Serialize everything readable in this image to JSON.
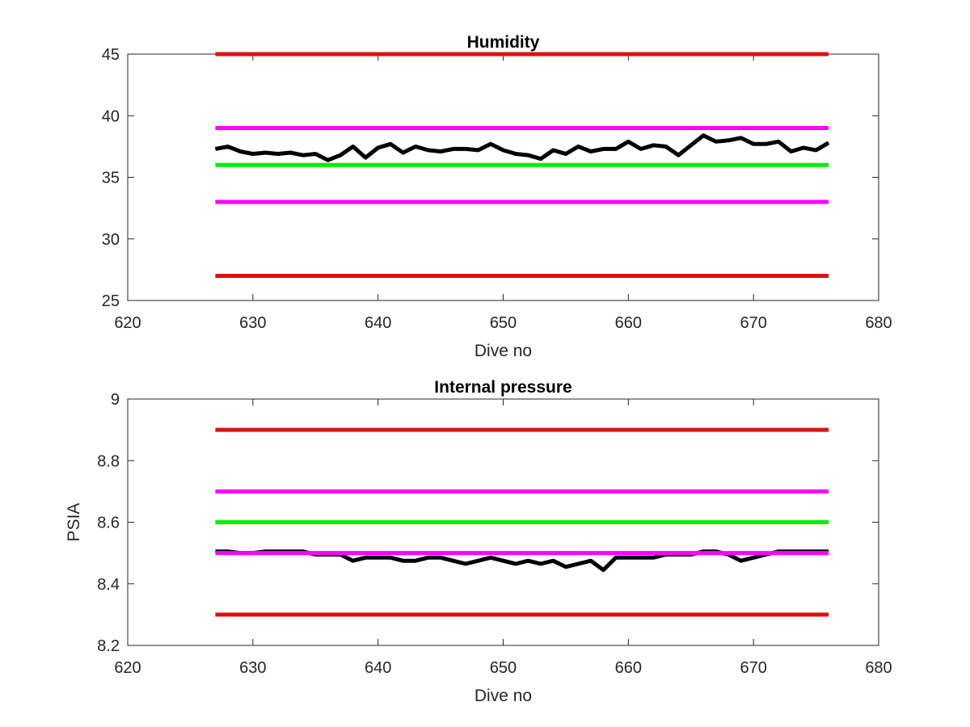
{
  "colors": {
    "background": "#ffffff",
    "axes": "#262626",
    "red_limit": "#e01010",
    "magenta_limit": "#ff00ff",
    "green_nominal": "#00ee00",
    "data_line": "#000000"
  },
  "chart_data": [
    {
      "type": "line",
      "title": "Humidity",
      "xlabel": "Dive no",
      "ylabel": "",
      "xlim": [
        620,
        680
      ],
      "ylim": [
        25,
        45
      ],
      "xticks": [
        620,
        630,
        640,
        650,
        660,
        670,
        680
      ],
      "yticks": [
        25,
        30,
        35,
        40,
        45
      ],
      "xtick_labels": [
        "620",
        "630",
        "640",
        "650",
        "660",
        "670",
        "680"
      ],
      "ytick_labels": [
        "25",
        "30",
        "35",
        "40",
        "45"
      ],
      "grid": false,
      "series": [
        {
          "role": "red_limit",
          "color": "#e01010",
          "x": [
            627,
            676
          ],
          "y": [
            45,
            45
          ]
        },
        {
          "role": "red_limit",
          "color": "#e01010",
          "x": [
            627,
            676
          ],
          "y": [
            27,
            27
          ]
        },
        {
          "role": "magenta_limit",
          "color": "#ff00ff",
          "x": [
            627,
            676
          ],
          "y": [
            39,
            39
          ]
        },
        {
          "role": "magenta_limit",
          "color": "#ff00ff",
          "x": [
            627,
            676
          ],
          "y": [
            33,
            33
          ]
        },
        {
          "role": "green_nominal",
          "color": "#00ee00",
          "x": [
            627,
            676
          ],
          "y": [
            36,
            36
          ]
        },
        {
          "role": "data",
          "color": "#000000",
          "x": [
            627,
            628,
            629,
            630,
            631,
            632,
            633,
            634,
            635,
            636,
            637,
            638,
            639,
            640,
            641,
            642,
            643,
            644,
            645,
            646,
            647,
            648,
            649,
            650,
            651,
            652,
            653,
            654,
            655,
            656,
            657,
            658,
            659,
            660,
            661,
            662,
            663,
            664,
            665,
            666,
            667,
            668,
            669,
            670,
            671,
            672,
            673,
            674,
            675,
            676
          ],
          "y": [
            37.3,
            37.5,
            37.1,
            36.9,
            37.0,
            36.9,
            37.0,
            36.8,
            36.9,
            36.4,
            36.8,
            37.5,
            36.6,
            37.4,
            37.7,
            37.0,
            37.5,
            37.2,
            37.1,
            37.3,
            37.3,
            37.2,
            37.7,
            37.2,
            36.9,
            36.8,
            36.5,
            37.2,
            36.9,
            37.5,
            37.1,
            37.3,
            37.3,
            37.9,
            37.3,
            37.6,
            37.5,
            36.8,
            37.6,
            38.4,
            37.9,
            38.0,
            38.2,
            37.7,
            37.7,
            37.9,
            37.1,
            37.4,
            37.2,
            37.8
          ]
        }
      ]
    },
    {
      "type": "line",
      "title": "Internal pressure",
      "xlabel": "Dive no",
      "ylabel": "PSIA",
      "xlim": [
        620,
        680
      ],
      "ylim": [
        8.2,
        9.0
      ],
      "xticks": [
        620,
        630,
        640,
        650,
        660,
        670,
        680
      ],
      "yticks": [
        8.2,
        8.4,
        8.6,
        8.8,
        9.0
      ],
      "xtick_labels": [
        "620",
        "630",
        "640",
        "650",
        "660",
        "670",
        "680"
      ],
      "ytick_labels": [
        "8.2",
        "8.4",
        "8.6",
        "8.8",
        "9"
      ],
      "grid": false,
      "series": [
        {
          "role": "red_limit",
          "color": "#e01010",
          "x": [
            627,
            676
          ],
          "y": [
            8.9,
            8.9
          ]
        },
        {
          "role": "red_limit",
          "color": "#e01010",
          "x": [
            627,
            676
          ],
          "y": [
            8.3,
            8.3
          ]
        },
        {
          "role": "magenta_limit",
          "color": "#ff00ff",
          "x": [
            627,
            676
          ],
          "y": [
            8.7,
            8.7
          ]
        },
        {
          "role": "green_nominal",
          "color": "#00ee00",
          "x": [
            627,
            676
          ],
          "y": [
            8.6,
            8.6
          ]
        },
        {
          "role": "data",
          "color": "#000000",
          "x": [
            627,
            628,
            629,
            630,
            631,
            632,
            633,
            634,
            635,
            636,
            637,
            638,
            639,
            640,
            641,
            642,
            643,
            644,
            645,
            646,
            647,
            648,
            649,
            650,
            651,
            652,
            653,
            654,
            655,
            656,
            657,
            658,
            659,
            660,
            661,
            662,
            663,
            664,
            665,
            666,
            667,
            668,
            669,
            670,
            671,
            672,
            673,
            674,
            675,
            676
          ],
          "y": [
            8.505,
            8.505,
            8.5,
            8.5,
            8.505,
            8.505,
            8.505,
            8.505,
            8.495,
            8.495,
            8.495,
            8.475,
            8.485,
            8.485,
            8.485,
            8.475,
            8.475,
            8.485,
            8.485,
            8.475,
            8.465,
            8.475,
            8.485,
            8.475,
            8.465,
            8.475,
            8.465,
            8.475,
            8.455,
            8.465,
            8.475,
            8.445,
            8.485,
            8.485,
            8.485,
            8.485,
            8.495,
            8.495,
            8.495,
            8.505,
            8.505,
            8.495,
            8.475,
            8.485,
            8.495,
            8.505,
            8.505,
            8.505,
            8.505,
            8.505
          ]
        },
        {
          "role": "magenta_limit",
          "color": "#ff00ff",
          "x": [
            627,
            676
          ],
          "y": [
            8.5,
            8.5
          ]
        }
      ]
    }
  ]
}
